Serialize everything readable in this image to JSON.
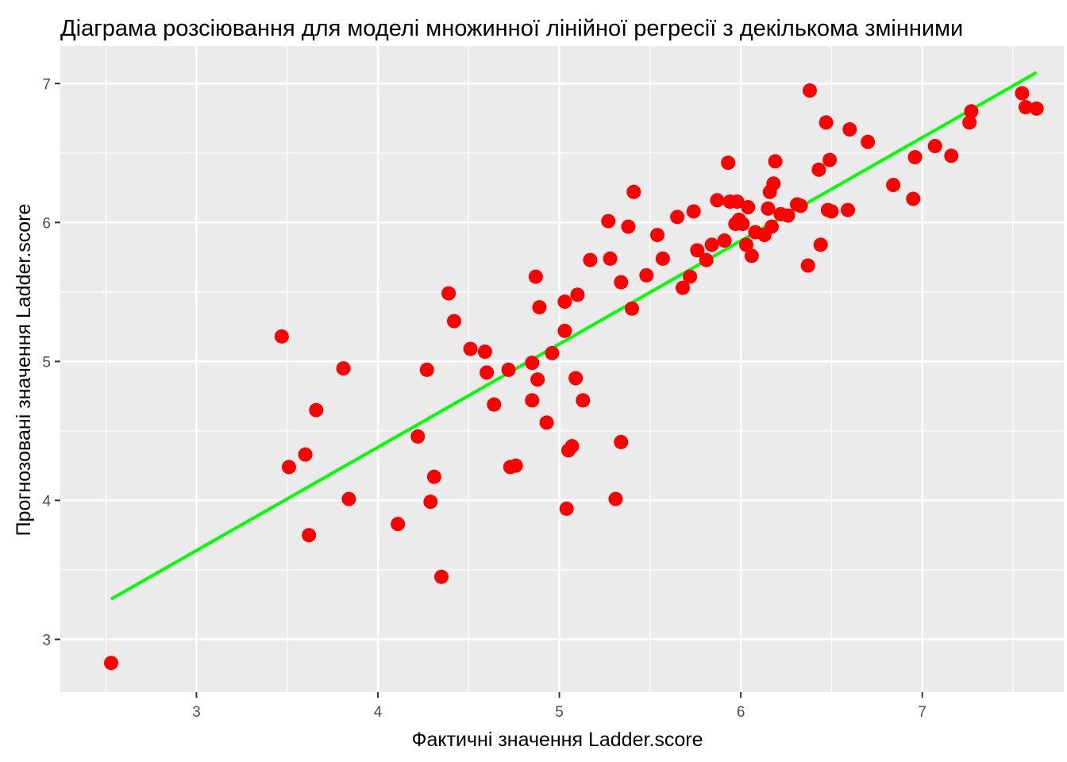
{
  "chart_data": {
    "type": "scatter",
    "title": "Діаграма розсіювання для моделі множинної лінійної регресії з декількома змінними",
    "xlabel": "Фактичні значення Ladder.score",
    "ylabel": "Прогнозовані значення Ladder.score",
    "xlim": [
      2.25,
      7.78
    ],
    "ylim": [
      2.62,
      7.27
    ],
    "xticks": [
      3,
      4,
      5,
      6,
      7
    ],
    "yticks": [
      3,
      4,
      5,
      6,
      7
    ],
    "xtick_labels": [
      "3",
      "4",
      "5",
      "6",
      "7"
    ],
    "ytick_labels": [
      "3",
      "4",
      "5",
      "6",
      "7"
    ],
    "grid": true,
    "legend": "none",
    "colors": {
      "panel_background": "#ebebeb",
      "grid": "#ffffff",
      "points": "#ff0000",
      "fit_line": "#00ff00",
      "tick_mark": "#333333"
    },
    "fit_line": {
      "x": [
        2.53,
        7.63
      ],
      "y": [
        3.29,
        7.08
      ]
    },
    "points": [
      [
        2.53,
        2.83
      ],
      [
        3.47,
        5.18
      ],
      [
        3.51,
        4.24
      ],
      [
        3.6,
        4.33
      ],
      [
        3.62,
        3.75
      ],
      [
        3.66,
        4.65
      ],
      [
        3.81,
        4.95
      ],
      [
        3.84,
        4.01
      ],
      [
        4.11,
        3.83
      ],
      [
        4.22,
        4.46
      ],
      [
        4.27,
        4.94
      ],
      [
        4.29,
        3.99
      ],
      [
        4.31,
        4.17
      ],
      [
        4.35,
        3.45
      ],
      [
        4.39,
        5.49
      ],
      [
        4.42,
        5.29
      ],
      [
        4.51,
        5.09
      ],
      [
        4.59,
        5.07
      ],
      [
        4.6,
        4.92
      ],
      [
        4.64,
        4.69
      ],
      [
        4.72,
        4.94
      ],
      [
        4.73,
        4.24
      ],
      [
        4.76,
        4.25
      ],
      [
        4.85,
        4.99
      ],
      [
        4.85,
        4.72
      ],
      [
        4.87,
        5.61
      ],
      [
        4.88,
        4.87
      ],
      [
        4.89,
        5.39
      ],
      [
        4.93,
        4.56
      ],
      [
        4.96,
        5.06
      ],
      [
        5.03,
        5.43
      ],
      [
        5.03,
        5.22
      ],
      [
        5.04,
        3.94
      ],
      [
        5.05,
        4.36
      ],
      [
        5.07,
        4.39
      ],
      [
        5.09,
        4.88
      ],
      [
        5.1,
        5.48
      ],
      [
        5.13,
        4.72
      ],
      [
        5.17,
        5.73
      ],
      [
        5.27,
        6.01
      ],
      [
        5.28,
        5.74
      ],
      [
        5.31,
        4.01
      ],
      [
        5.34,
        4.42
      ],
      [
        5.34,
        5.57
      ],
      [
        5.38,
        5.97
      ],
      [
        5.4,
        5.38
      ],
      [
        5.41,
        6.22
      ],
      [
        5.48,
        5.62
      ],
      [
        5.54,
        5.91
      ],
      [
        5.57,
        5.74
      ],
      [
        5.65,
        6.04
      ],
      [
        5.68,
        5.53
      ],
      [
        5.72,
        5.61
      ],
      [
        5.74,
        6.08
      ],
      [
        5.76,
        5.8
      ],
      [
        5.81,
        5.73
      ],
      [
        5.84,
        5.84
      ],
      [
        5.87,
        6.16
      ],
      [
        5.91,
        5.87
      ],
      [
        5.93,
        6.43
      ],
      [
        5.94,
        6.15
      ],
      [
        5.97,
        5.99
      ],
      [
        5.98,
        6.15
      ],
      [
        5.99,
        6.02
      ],
      [
        6.01,
        5.99
      ],
      [
        6.03,
        5.84
      ],
      [
        6.04,
        6.11
      ],
      [
        6.06,
        5.76
      ],
      [
        6.08,
        5.93
      ],
      [
        6.13,
        5.91
      ],
      [
        6.15,
        6.1
      ],
      [
        6.16,
        6.22
      ],
      [
        6.17,
        5.97
      ],
      [
        6.18,
        6.28
      ],
      [
        6.19,
        6.44
      ],
      [
        6.22,
        6.06
      ],
      [
        6.26,
        6.05
      ],
      [
        6.31,
        6.13
      ],
      [
        6.33,
        6.12
      ],
      [
        6.37,
        5.69
      ],
      [
        6.38,
        6.95
      ],
      [
        6.43,
        6.38
      ],
      [
        6.44,
        5.84
      ],
      [
        6.47,
        6.72
      ],
      [
        6.48,
        6.09
      ],
      [
        6.49,
        6.45
      ],
      [
        6.5,
        6.08
      ],
      [
        6.59,
        6.09
      ],
      [
        6.6,
        6.67
      ],
      [
        6.7,
        6.58
      ],
      [
        6.84,
        6.27
      ],
      [
        6.95,
        6.17
      ],
      [
        6.96,
        6.47
      ],
      [
        7.07,
        6.55
      ],
      [
        7.16,
        6.48
      ],
      [
        7.26,
        6.72
      ],
      [
        7.27,
        6.8
      ],
      [
        7.55,
        6.93
      ],
      [
        7.57,
        6.83
      ],
      [
        7.63,
        6.82
      ]
    ]
  }
}
